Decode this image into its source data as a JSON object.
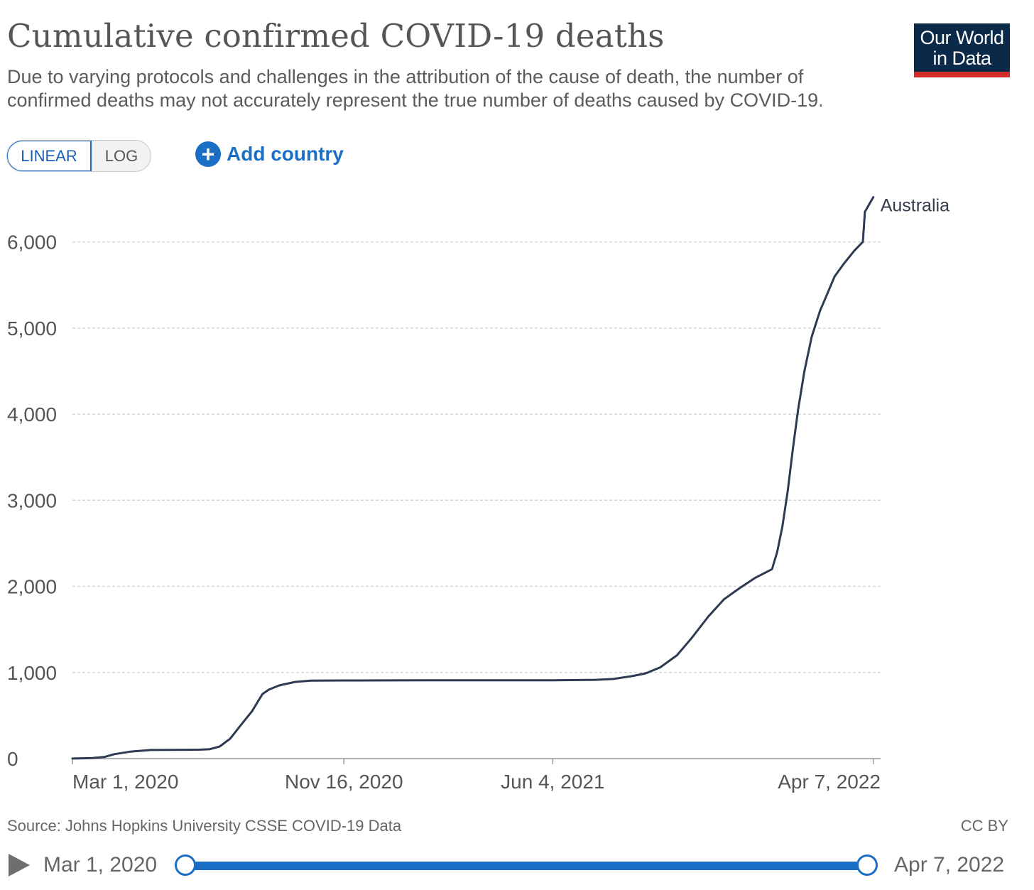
{
  "header": {
    "title": "Cumulative confirmed COVID-19 deaths",
    "subtitle": "Due to varying protocols and challenges in the attribution of the cause of death, the number of confirmed deaths may not accurately represent the true number of deaths caused by COVID-19.",
    "logo_line1": "Our World",
    "logo_line2": "in Data"
  },
  "controls": {
    "linear_label": "LINEAR",
    "log_label": "LOG",
    "selected_scale": "LINEAR",
    "add_country_label": "Add country",
    "add_icon": "plus-circle-icon"
  },
  "colors": {
    "accent": "#1a6fc4",
    "series": "#2d3a52",
    "logo_bg": "#0b2a4a",
    "logo_bar": "#d42b2b"
  },
  "chart_data": {
    "type": "line",
    "title": "Cumulative confirmed COVID-19 deaths",
    "xlabel": "",
    "ylabel": "",
    "x_tick_labels": [
      "Mar 1, 2020",
      "Nov 16, 2020",
      "Jun 4, 2021",
      "Apr 7, 2022"
    ],
    "x_tick_dates": [
      "2020-03-01",
      "2020-11-16",
      "2021-06-04",
      "2022-04-07"
    ],
    "y_ticks": [
      0,
      1000,
      2000,
      3000,
      4000,
      5000,
      6000
    ],
    "y_tick_labels": [
      "0",
      "1,000",
      "2,000",
      "3,000",
      "4,000",
      "5,000",
      "6,000"
    ],
    "xlim": [
      "2020-03-01",
      "2022-04-14"
    ],
    "ylim": [
      0,
      6500
    ],
    "grid": "horizontal-dashed",
    "legend": "inline-end-label",
    "series": [
      {
        "name": "Australia",
        "points": [
          [
            "2020-03-01",
            1
          ],
          [
            "2020-03-20",
            6
          ],
          [
            "2020-04-01",
            20
          ],
          [
            "2020-04-10",
            51
          ],
          [
            "2020-04-25",
            80
          ],
          [
            "2020-05-15",
            100
          ],
          [
            "2020-06-15",
            102
          ],
          [
            "2020-07-01",
            104
          ],
          [
            "2020-07-10",
            108
          ],
          [
            "2020-07-20",
            140
          ],
          [
            "2020-07-30",
            230
          ],
          [
            "2020-08-10",
            400
          ],
          [
            "2020-08-20",
            550
          ],
          [
            "2020-08-25",
            650
          ],
          [
            "2020-08-30",
            750
          ],
          [
            "2020-09-05",
            800
          ],
          [
            "2020-09-15",
            850
          ],
          [
            "2020-09-30",
            890
          ],
          [
            "2020-10-15",
            905
          ],
          [
            "2020-11-16",
            907
          ],
          [
            "2021-02-01",
            909
          ],
          [
            "2021-06-04",
            910
          ],
          [
            "2021-07-15",
            915
          ],
          [
            "2021-08-01",
            925
          ],
          [
            "2021-08-20",
            960
          ],
          [
            "2021-09-01",
            990
          ],
          [
            "2021-09-15",
            1060
          ],
          [
            "2021-10-01",
            1200
          ],
          [
            "2021-10-15",
            1400
          ],
          [
            "2021-10-31",
            1650
          ],
          [
            "2021-11-15",
            1850
          ],
          [
            "2021-11-30",
            1980
          ],
          [
            "2021-12-15",
            2100
          ],
          [
            "2021-12-31",
            2200
          ],
          [
            "2022-01-05",
            2400
          ],
          [
            "2022-01-10",
            2700
          ],
          [
            "2022-01-15",
            3100
          ],
          [
            "2022-01-20",
            3600
          ],
          [
            "2022-01-25",
            4050
          ],
          [
            "2022-01-31",
            4500
          ],
          [
            "2022-02-07",
            4900
          ],
          [
            "2022-02-15",
            5200
          ],
          [
            "2022-02-22",
            5400
          ],
          [
            "2022-03-01",
            5600
          ],
          [
            "2022-03-10",
            5750
          ],
          [
            "2022-03-20",
            5900
          ],
          [
            "2022-03-28",
            6000
          ],
          [
            "2022-03-30",
            6350
          ],
          [
            "2022-04-07",
            6520
          ]
        ]
      }
    ]
  },
  "footer": {
    "source": "Source: Johns Hopkins University CSSE COVID-19 Data",
    "license": "CC BY"
  },
  "timeline": {
    "start_label": "Mar 1, 2020",
    "end_label": "Apr 7, 2022",
    "play_icon": "play-icon"
  }
}
